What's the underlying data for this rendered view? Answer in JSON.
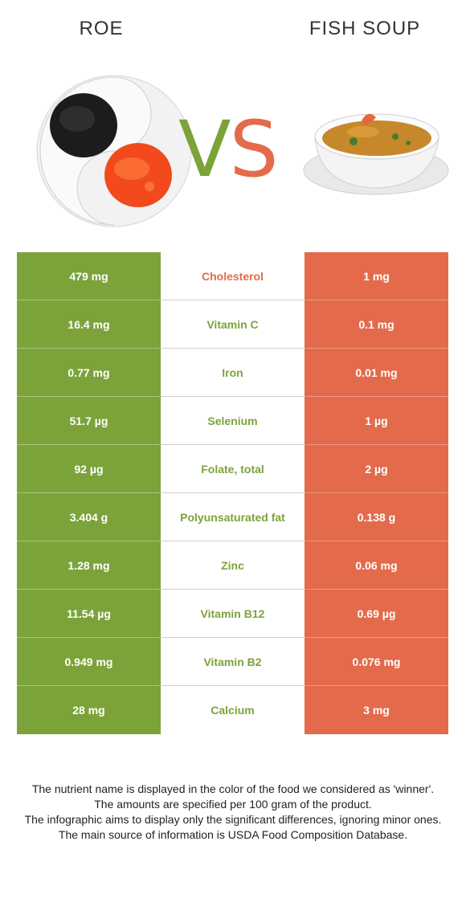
{
  "header": {
    "left_title": "ROE",
    "right_title": "FISH SOUP",
    "vs_v": "V",
    "vs_s": "S"
  },
  "colors": {
    "winner_left": "#7ca33a",
    "winner_right": "#e36b4b"
  },
  "rows": [
    {
      "left": "479 mg",
      "nutrient": "Cholesterol",
      "right": "1 mg",
      "winner": "right"
    },
    {
      "left": "16.4 mg",
      "nutrient": "Vitamin C",
      "right": "0.1 mg",
      "winner": "left"
    },
    {
      "left": "0.77 mg",
      "nutrient": "Iron",
      "right": "0.01 mg",
      "winner": "left"
    },
    {
      "left": "51.7 µg",
      "nutrient": "Selenium",
      "right": "1 µg",
      "winner": "left"
    },
    {
      "left": "92 µg",
      "nutrient": "Folate, total",
      "right": "2 µg",
      "winner": "left"
    },
    {
      "left": "3.404 g",
      "nutrient": "Polyunsaturated fat",
      "right": "0.138 g",
      "winner": "left"
    },
    {
      "left": "1.28 mg",
      "nutrient": "Zinc",
      "right": "0.06 mg",
      "winner": "left"
    },
    {
      "left": "11.54 µg",
      "nutrient": "Vitamin B12",
      "right": "0.69 µg",
      "winner": "left"
    },
    {
      "left": "0.949 mg",
      "nutrient": "Vitamin B2",
      "right": "0.076 mg",
      "winner": "left"
    },
    {
      "left": "28 mg",
      "nutrient": "Calcium",
      "right": "3 mg",
      "winner": "left"
    }
  ],
  "notes": [
    "The nutrient name is displayed in the color of the food we considered as 'winner'.",
    "The amounts are specified per 100 gram of the product.",
    "The infographic aims to display only the significant differences, ignoring minor ones.",
    "The main source of information is USDA Food Composition Database."
  ]
}
